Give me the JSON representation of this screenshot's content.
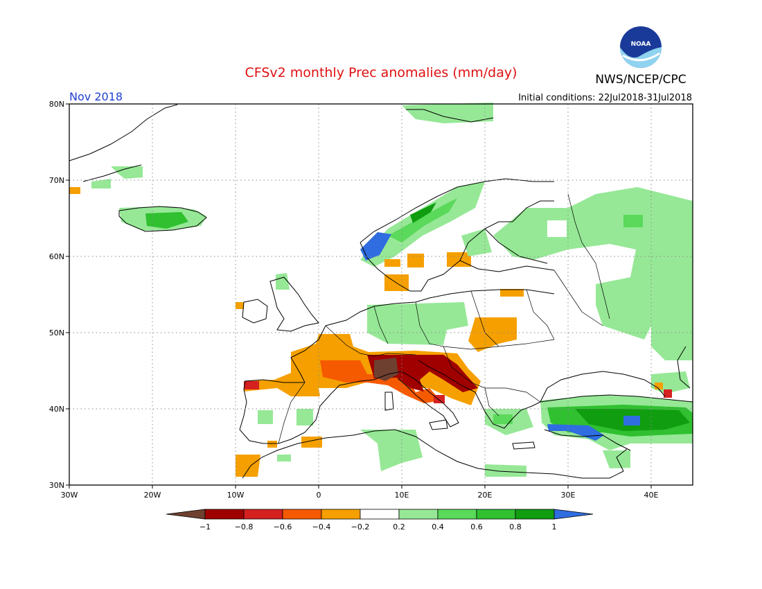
{
  "title": "CFSv2 monthly Prec anomalies (mm/day)",
  "month": "Nov 2018",
  "agency": "NWS/NCEP/CPC",
  "logo_text": "NOAA",
  "initial_conditions": "Initial conditions: 22Jul2018-31Jul2018",
  "colors": {
    "title": "#e01010",
    "month": "#1f3fd0",
    "grid": "#8a8a8a"
  },
  "x_ticks": [
    "30W",
    "20W",
    "10W",
    "0",
    "10E",
    "20E",
    "30E",
    "40E"
  ],
  "y_ticks": [
    "80N",
    "70N",
    "60N",
    "50N",
    "40N",
    "30N"
  ],
  "colorbar": {
    "colors": [
      "#6e4030",
      "#a00000",
      "#d52020",
      "#f55a00",
      "#f5a000",
      "#ffffff",
      "#96e896",
      "#5ad95a",
      "#30c030",
      "#109d10",
      "#2f6de0"
    ],
    "labels": [
      "-1",
      "-0.8",
      "-0.6",
      "-0.4",
      "-0.2",
      "0.2",
      "0.4",
      "0.6",
      "0.8",
      "1"
    ]
  }
}
